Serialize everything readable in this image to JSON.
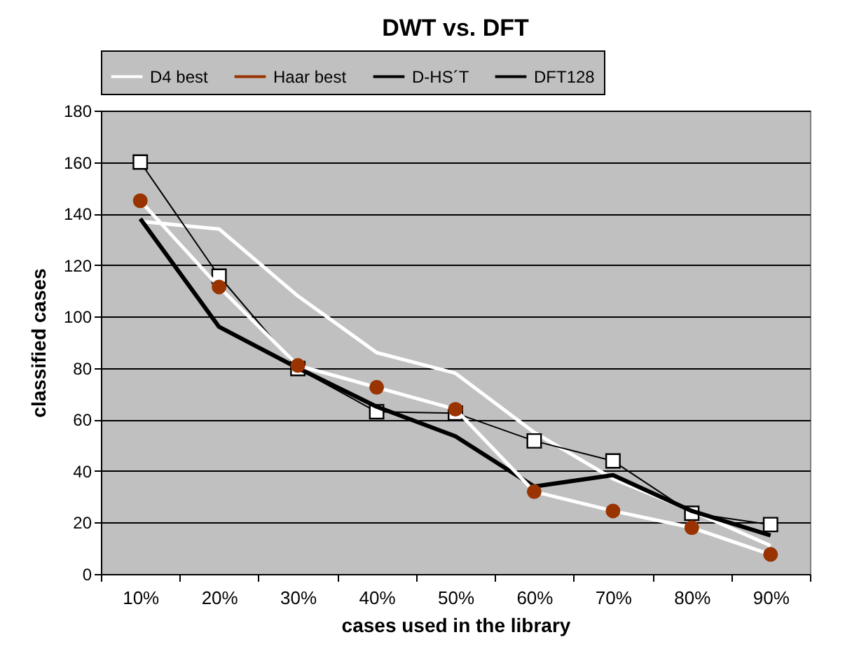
{
  "chart_data": {
    "type": "line",
    "title": "DWT vs. DFT",
    "xlabel": "cases used in the library",
    "ylabel": "classified cases",
    "categories": [
      "10%",
      "20%",
      "30%",
      "40%",
      "50%",
      "60%",
      "70%",
      "80%",
      "90%"
    ],
    "series": [
      {
        "name": "D4 best",
        "color": "#ffffff",
        "marker": "none",
        "values": [
          137,
          134,
          108,
          86,
          78,
          55,
          37,
          24.5,
          11
        ]
      },
      {
        "name": "Haar best",
        "color": "#993300",
        "marker": "circle",
        "values": [
          145,
          111.5,
          81,
          72.5,
          64,
          32,
          24.5,
          18,
          7.6
        ]
      },
      {
        "name": "D-HS´T",
        "color": "#000000",
        "marker": "square",
        "values": [
          160,
          115.7,
          79.8,
          63,
          62.5,
          51.7,
          43.9,
          23.6,
          19.2
        ]
      },
      {
        "name": "DFT128",
        "color": "#000000",
        "marker": "none",
        "values": [
          138,
          96,
          80,
          65,
          53.5,
          34,
          38.4,
          24.5,
          15
        ]
      }
    ],
    "ylim": [
      0,
      180
    ],
    "yticks": [
      0,
      20,
      40,
      60,
      80,
      100,
      120,
      140,
      160,
      180
    ],
    "grid": "y",
    "legend": "top"
  }
}
